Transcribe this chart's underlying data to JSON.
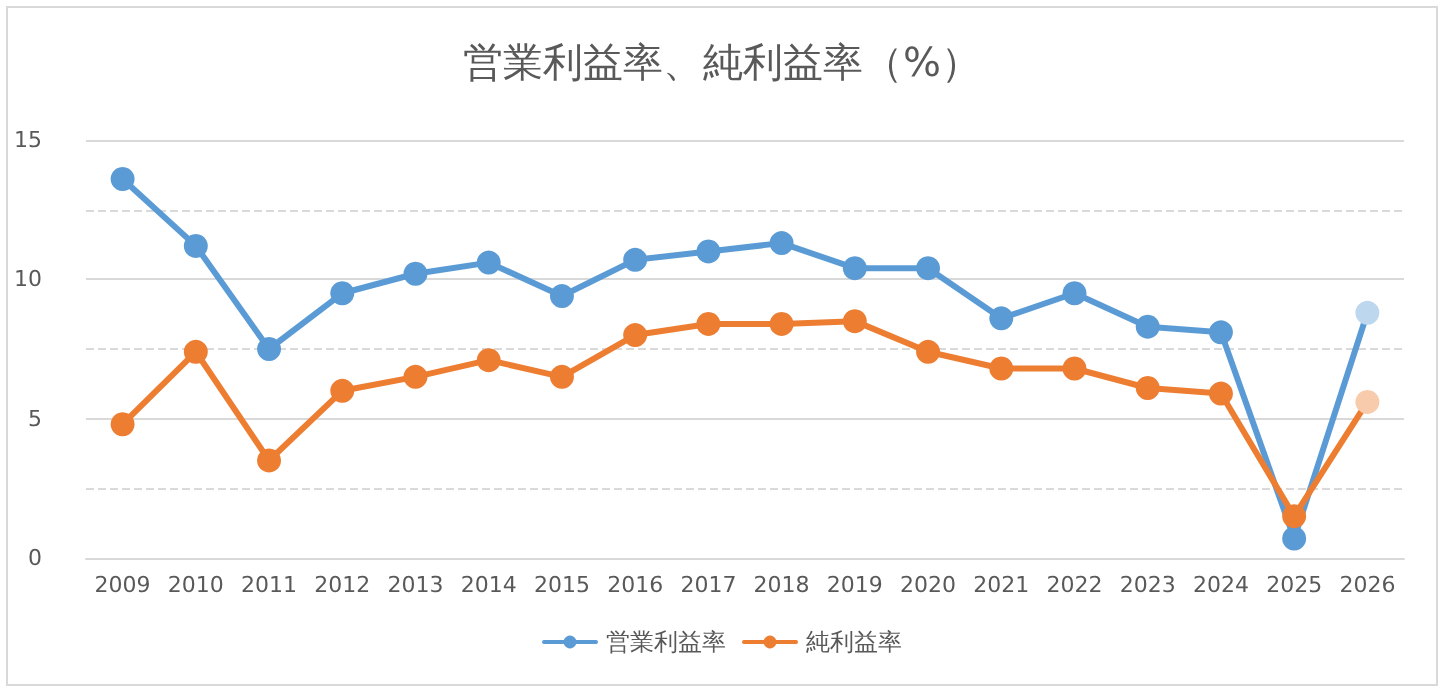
{
  "chart_data": {
    "type": "line",
    "title": "営業利益率、純利益率（%）",
    "categories": [
      "2009",
      "2010",
      "2011",
      "2012",
      "2013",
      "2014",
      "2015",
      "2016",
      "2017",
      "2018",
      "2019",
      "2020",
      "2021",
      "2022",
      "2023",
      "2024",
      "2025",
      "2026"
    ],
    "series": [
      {
        "name": "営業利益率",
        "color": "#5b9bd5",
        "colors": [
          "#5b9bd5",
          "#5b9bd5",
          "#5b9bd5",
          "#5b9bd5",
          "#5b9bd5",
          "#5b9bd5",
          "#5b9bd5",
          "#5b9bd5",
          "#5b9bd5",
          "#5b9bd5",
          "#5b9bd5",
          "#5b9bd5",
          "#5b9bd5",
          "#5b9bd5",
          "#5b9bd5",
          "#5b9bd5",
          "#5b9bd5",
          "#bdd7ee"
        ],
        "values": [
          13.6,
          11.2,
          7.5,
          9.5,
          10.2,
          10.6,
          9.4,
          10.7,
          11.0,
          11.3,
          10.4,
          10.4,
          8.6,
          9.5,
          8.3,
          8.1,
          0.7,
          8.8
        ]
      },
      {
        "name": "純利益率",
        "color": "#ed7d31",
        "colors": [
          "#ed7d31",
          "#ed7d31",
          "#ed7d31",
          "#ed7d31",
          "#ed7d31",
          "#ed7d31",
          "#ed7d31",
          "#ed7d31",
          "#ed7d31",
          "#ed7d31",
          "#ed7d31",
          "#ed7d31",
          "#ed7d31",
          "#ed7d31",
          "#ed7d31",
          "#ed7d31",
          "#ed7d31",
          "#f8cbad"
        ],
        "values": [
          4.8,
          7.4,
          3.5,
          6.0,
          6.5,
          7.1,
          6.5,
          8.0,
          8.4,
          8.4,
          8.5,
          7.4,
          6.8,
          6.8,
          6.1,
          5.9,
          1.5,
          5.6
        ]
      }
    ],
    "ylim": [
      0,
      15
    ],
    "yticks": [
      0,
      5,
      10,
      15
    ],
    "grid": "y",
    "legend": "bottom",
    "marker": "circle",
    "line_style": "solid"
  }
}
